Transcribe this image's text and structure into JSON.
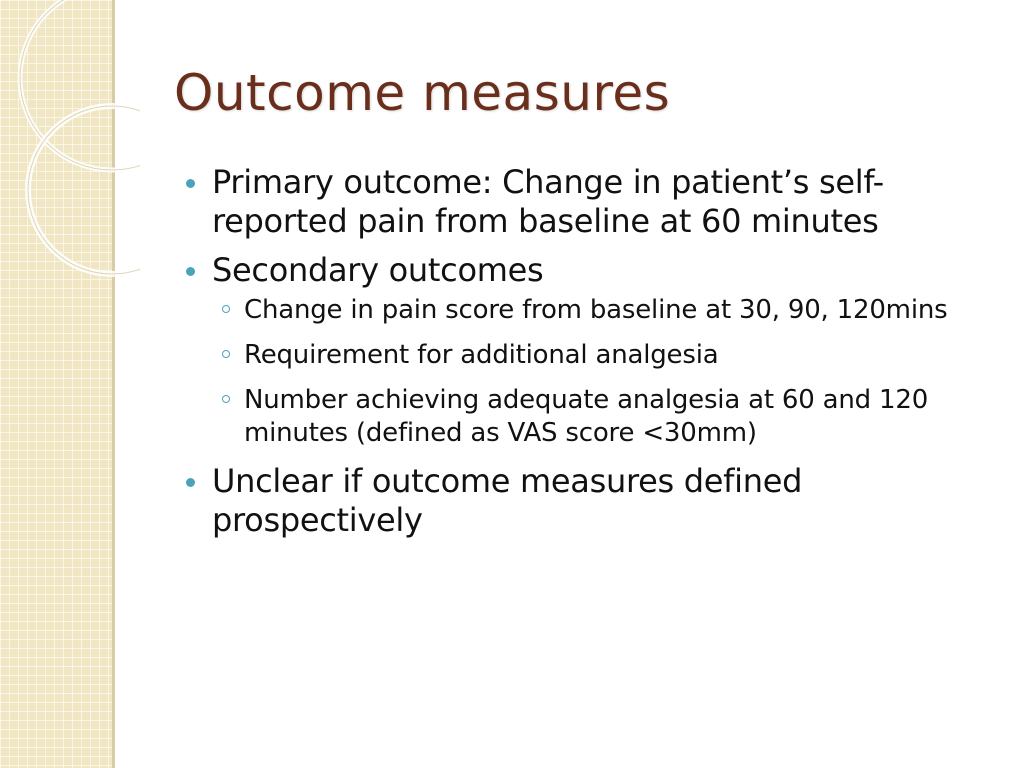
{
  "slide": {
    "title": "Outcome measures",
    "bullets": [
      {
        "text": "Primary outcome: Change in patient’s self-reported pain from baseline at 60 minutes"
      },
      {
        "text": "Secondary outcomes",
        "sub": [
          "Change in pain score from baseline at 30, 90, 120mins",
          "Requirement for additional analgesia",
          "Number achieving adequate analgesia at 60 and 120 minutes (defined as VAS score <30mm)"
        ]
      },
      {
        "text": "Unclear if outcome measures defined prospectively"
      }
    ]
  },
  "theme": {
    "title_color": "#6a2e1c",
    "bullet_color": "#4aa3b8",
    "panel_color": "#f1e6c4"
  }
}
